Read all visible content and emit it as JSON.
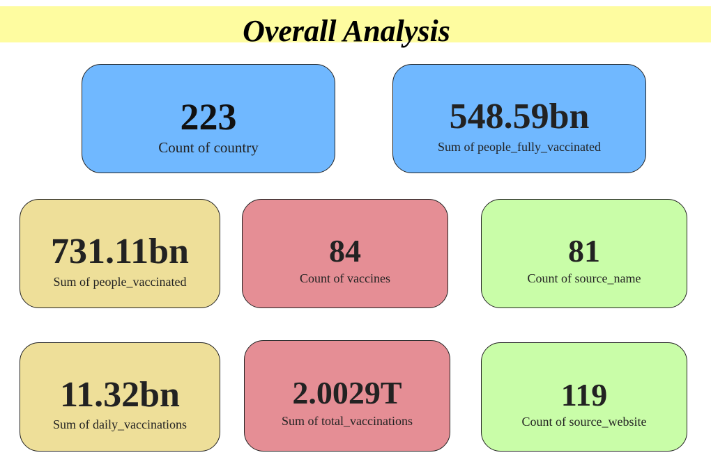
{
  "header": {
    "title": "Overall Analysis",
    "background": "#fefca0"
  },
  "cards": [
    {
      "value": "223",
      "label": "Count of country",
      "color": "#70b8ff"
    },
    {
      "value": "548.59bn",
      "label": "Sum of people_fully_vaccinated",
      "color": "#70b8ff"
    },
    {
      "value": "731.11bn",
      "label": "Sum of people_vaccinated",
      "color": "#eedf99"
    },
    {
      "value": "84",
      "label": "Count of vaccines",
      "color": "#e58e95"
    },
    {
      "value": "81",
      "label": "Count of source_name",
      "color": "#c9fda8"
    },
    {
      "value": "11.32bn",
      "label": "Sum of daily_vaccinations",
      "color": "#eedf99"
    },
    {
      "value": "2.0029T",
      "label": "Sum of total_vaccinations",
      "color": "#e58e95"
    },
    {
      "value": "119",
      "label": "Count of source_website",
      "color": "#c9fda8"
    }
  ]
}
